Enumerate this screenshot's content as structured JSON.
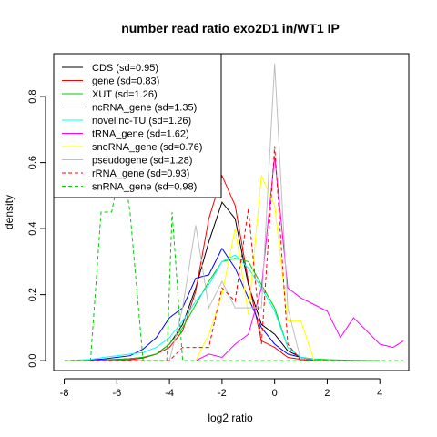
{
  "chart_data": {
    "type": "line",
    "title": "number read ratio exo2D1 in/WT1 IP",
    "xlabel": "log2 ratio",
    "ylabel": "density",
    "xlim": [
      -8.4,
      5.1
    ],
    "ylim": [
      -0.03,
      0.93
    ],
    "x_ticks": [
      -8,
      -6,
      -4,
      -2,
      0,
      2,
      4
    ],
    "y_ticks": [
      0.0,
      0.2,
      0.4,
      0.6,
      0.8
    ],
    "legend_position": "top-left",
    "grid": false,
    "series": [
      {
        "name": "CDS (sd=0.95)",
        "color": "#000000",
        "dash": false,
        "x": [
          -8,
          -7.5,
          -7,
          -6.5,
          -6,
          -5.5,
          -5,
          -4.5,
          -4,
          -3.5,
          -3,
          -2.5,
          -2,
          -1.5,
          -1,
          -0.5,
          0,
          0.5,
          1,
          1.5,
          2
        ],
        "y": [
          0,
          0,
          0,
          0.002,
          0.004,
          0.006,
          0.01,
          0.02,
          0.05,
          0.11,
          0.22,
          0.36,
          0.48,
          0.43,
          0.23,
          0.11,
          0.08,
          0.03,
          0.01,
          0.002,
          0
        ]
      },
      {
        "name": "gene (sd=0.83)",
        "color": "#ff0000",
        "dash": false,
        "x": [
          -8,
          -7,
          -6,
          -5.5,
          -5,
          -4.5,
          -4,
          -3.5,
          -3,
          -2.5,
          -2,
          -1.5,
          -1,
          -0.5,
          0,
          0.5,
          1,
          1.5,
          2
        ],
        "y": [
          0,
          0,
          0.001,
          0.003,
          0.008,
          0.02,
          0.04,
          0.09,
          0.21,
          0.43,
          0.56,
          0.47,
          0.24,
          0.06,
          0.04,
          0.01,
          0.004,
          0.001,
          0
        ]
      },
      {
        "name": "XUT (sd=1.26)",
        "color": "#00cc00",
        "dash": false,
        "x": [
          -8,
          -7,
          -6,
          -5.5,
          -5,
          -4.5,
          -4,
          -3.5,
          -3,
          -2.5,
          -2,
          -1.5,
          -1,
          -0.5,
          0,
          0.5,
          1,
          1.5,
          2,
          3,
          4
        ],
        "y": [
          0,
          0,
          0.003,
          0.006,
          0.01,
          0.02,
          0.05,
          0.1,
          0.17,
          0.24,
          0.3,
          0.31,
          0.3,
          0.23,
          0.16,
          0.04,
          0.01,
          0.005,
          0.003,
          0.001,
          0
        ]
      },
      {
        "name": "ncRNA_gene (sd=1.35)",
        "color": "#0000ff",
        "dash": false,
        "x": [
          -8,
          -7,
          -6.5,
          -6,
          -5.5,
          -5,
          -4.5,
          -4,
          -3.5,
          -3,
          -2.5,
          -2,
          -1.5,
          -1,
          -0.5,
          0,
          0.5,
          1,
          1.5,
          2
        ],
        "y": [
          0,
          0.002,
          0.005,
          0.01,
          0.015,
          0.035,
          0.07,
          0.13,
          0.16,
          0.25,
          0.26,
          0.34,
          0.28,
          0.19,
          0.1,
          0.05,
          0.02,
          0.01,
          0.003,
          0
        ]
      },
      {
        "name": "novel nc-TU (sd=1.26)",
        "color": "#00ffff",
        "dash": false,
        "x": [
          -8,
          -7,
          -6.5,
          -6,
          -5.5,
          -5,
          -4.5,
          -4,
          -3.5,
          -3,
          -2.5,
          -2,
          -1.5,
          -1,
          -0.5,
          0,
          0.5,
          1,
          1.5,
          2
        ],
        "y": [
          0,
          0.004,
          0.01,
          0.015,
          0.02,
          0.025,
          0.04,
          0.07,
          0.12,
          0.18,
          0.23,
          0.3,
          0.32,
          0.28,
          0.22,
          0.15,
          0.04,
          0.01,
          0.004,
          0
        ]
      },
      {
        "name": "tRNA_gene (sd=1.62)",
        "color": "#ff00ff",
        "dash": false,
        "x": [
          -3,
          -2.5,
          -2,
          -1.5,
          -1,
          -0.5,
          0,
          0.5,
          1,
          1.5,
          2,
          2.5,
          3,
          3.5,
          4,
          4.5,
          4.9
        ],
        "y": [
          0,
          0.02,
          0.01,
          0.05,
          0.08,
          0.22,
          0.62,
          0.22,
          0.19,
          0.17,
          0.15,
          0.07,
          0.13,
          0.09,
          0.05,
          0.04,
          0.06
        ]
      },
      {
        "name": "snoRNA_gene (sd=0.76)",
        "color": "#ffff00",
        "dash": false,
        "x": [
          -3,
          -2.5,
          -2,
          -1.5,
          -1,
          -0.5,
          0,
          0.5,
          1,
          1.5
        ],
        "y": [
          0,
          0.08,
          0.2,
          0.4,
          0.14,
          0.56,
          0.47,
          0.12,
          0.12,
          0
        ]
      },
      {
        "name": "pseudogene (sd=1.28)",
        "color": "#bebebe",
        "dash": false,
        "x": [
          -8,
          -4,
          -3.5,
          -3,
          -2.5,
          -2,
          -1.5,
          -1,
          -0.5,
          0,
          0.5,
          1,
          1.5,
          2
        ],
        "y": [
          0,
          0,
          0.16,
          0.41,
          0.16,
          0.24,
          0.16,
          0.16,
          0.16,
          0.9,
          0.16,
          0,
          0,
          0
        ]
      },
      {
        "name": "rRNA_gene (sd=0.93)",
        "color": "#ff0000",
        "dash": true,
        "x": [
          -8,
          -4,
          -3.5,
          -3,
          -2.5,
          -2,
          -1.5,
          -1,
          -0.5,
          0,
          0.5,
          1,
          1.5,
          2
        ],
        "y": [
          0,
          0,
          0.04,
          0.04,
          0.04,
          0.22,
          0.18,
          0.46,
          0.05,
          0.65,
          0.05,
          0,
          0,
          0
        ]
      },
      {
        "name": "snRNA_gene (sd=0.98)",
        "color": "#00cc00",
        "dash": true,
        "x": [
          -8,
          -7,
          -6.6,
          -6.2,
          -5.8,
          -5.5,
          -5,
          -4.5,
          -4.1,
          -3.9,
          -3.5,
          -3,
          0,
          4.9
        ],
        "y": [
          0,
          0,
          0.45,
          0.45,
          0.61,
          0.45,
          0,
          0,
          0,
          0.45,
          0,
          0,
          0,
          0
        ]
      }
    ]
  }
}
